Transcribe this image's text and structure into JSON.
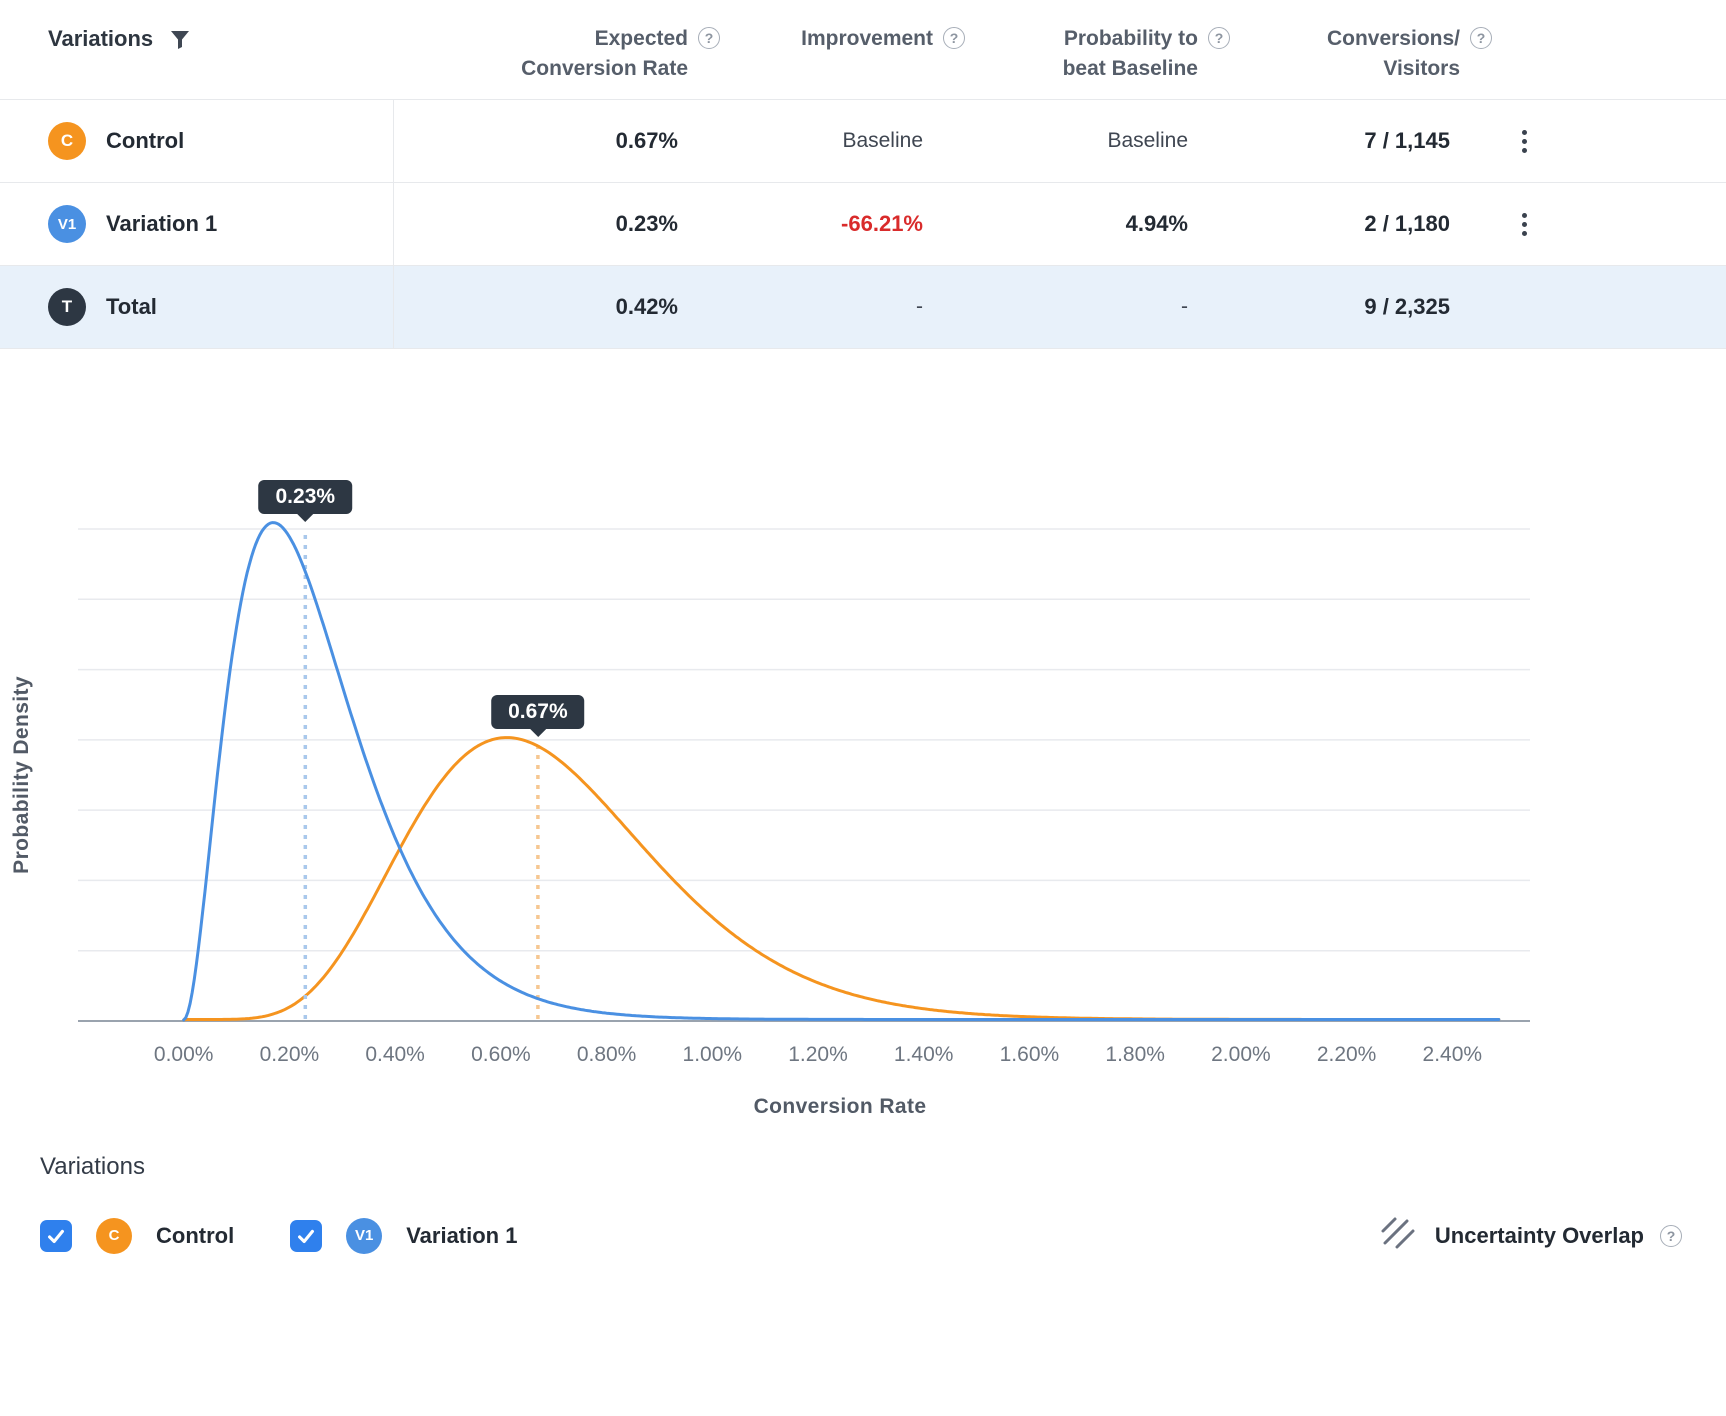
{
  "colors": {
    "control": "#f5941f",
    "variation1": "#4a90e2",
    "total_badge": "#2d3743",
    "negative": "#d92b2b",
    "checkbox_accent": "#2f80ed",
    "total_row_bg": "#e8f1fa",
    "tooltip_bg": "#2d3743"
  },
  "icons": {
    "help": "?",
    "filter": "filter-funnel",
    "kebab": "vertical-dots",
    "check": "checkmark",
    "uncertainty": "diagonal-hatch"
  },
  "table": {
    "columns": [
      {
        "label": "Variations"
      },
      {
        "label": "Expected\nConversion Rate"
      },
      {
        "label": "Improvement"
      },
      {
        "label": "Probability to\nbeat Baseline"
      },
      {
        "label": "Conversions/\nVisitors"
      }
    ],
    "rows": [
      {
        "badge": "C",
        "name": "Control",
        "expected_rate": "0.67%",
        "improvement": "Baseline",
        "probability": "Baseline",
        "conversions": "7 / 1,145"
      },
      {
        "badge": "V1",
        "name": "Variation 1",
        "expected_rate": "0.23%",
        "improvement": "-66.21%",
        "probability": "4.94%",
        "conversions": "2 / 1,180"
      },
      {
        "badge": "T",
        "name": "Total",
        "expected_rate": "0.42%",
        "improvement": "-",
        "probability": "-",
        "conversions": "9 / 2,325"
      }
    ]
  },
  "chart_data": {
    "type": "line",
    "title": "",
    "xlabel": "Conversion Rate",
    "ylabel": "Probability Density",
    "grid": "horizontal",
    "legend_position": "bottom-left",
    "x_tick_labels": [
      "0.00%",
      "0.20%",
      "0.40%",
      "0.60%",
      "0.80%",
      "1.00%",
      "1.20%",
      "1.40%",
      "1.60%",
      "1.80%",
      "2.00%",
      "2.20%",
      "2.40%"
    ],
    "xlim": [
      -0.2,
      2.547
    ],
    "series": [
      {
        "name": "Control",
        "color": "#f5941f",
        "dash_color": "#f6c791",
        "distribution": "beta",
        "conversions": 7,
        "visitors": 1145,
        "alpha": 8,
        "beta": 1139,
        "mean_pct": 0.67,
        "peak_label": "0.67%",
        "peak_fraction": 0.573
      },
      {
        "name": "Variation 1",
        "color": "#4a90e2",
        "dash_color": "#a9c8eb",
        "distribution": "beta",
        "conversions": 2,
        "visitors": 1180,
        "alpha": 3,
        "beta": 1179,
        "mean_pct": 0.23,
        "peak_label": "0.23%",
        "peak_fraction": 1.01
      }
    ]
  },
  "legend": {
    "title": "Variations",
    "items": [
      {
        "label": "Control",
        "badge": "C",
        "checked": true
      },
      {
        "label": "Variation 1",
        "badge": "V1",
        "checked": true
      }
    ],
    "uncertainty_label": "Uncertainty Overlap"
  }
}
